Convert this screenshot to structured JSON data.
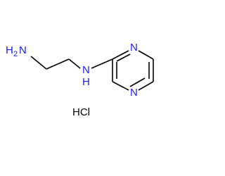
{
  "atoms": {
    "amine_n": "N",
    "amine_h": "H",
    "amine_h_count": "2",
    "nh_n": "N",
    "nh_h": "H",
    "ring_n1": "N",
    "ring_n4": "N"
  },
  "salt": "HCl"
}
